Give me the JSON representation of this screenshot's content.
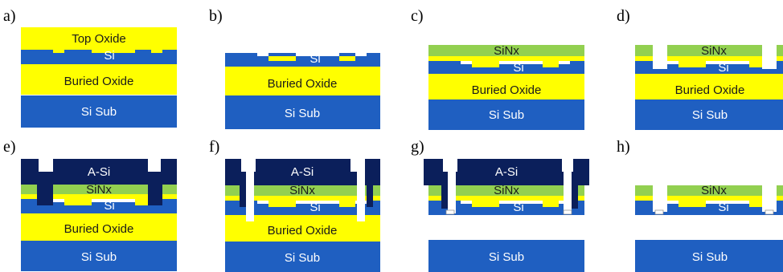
{
  "colors": {
    "si": "#1f5fc1",
    "oxide": "#ffff00",
    "sinx": "#92d050",
    "asi": "#0b1f5b",
    "void": "#ffffff"
  },
  "panels": [
    {
      "id": "a",
      "label": "a)"
    },
    {
      "id": "b",
      "label": "b)"
    },
    {
      "id": "c",
      "label": "c)"
    },
    {
      "id": "d",
      "label": "d)"
    },
    {
      "id": "e",
      "label": "e)"
    },
    {
      "id": "f",
      "label": "f)"
    },
    {
      "id": "g",
      "label": "g)"
    },
    {
      "id": "h",
      "label": "h)"
    }
  ],
  "layers": {
    "top_oxide": "Top Oxide",
    "si": "Si",
    "buried_oxide": "Buried Oxide",
    "si_sub": "Si Sub",
    "sinx": "SiNx",
    "a_si": "A-Si"
  }
}
